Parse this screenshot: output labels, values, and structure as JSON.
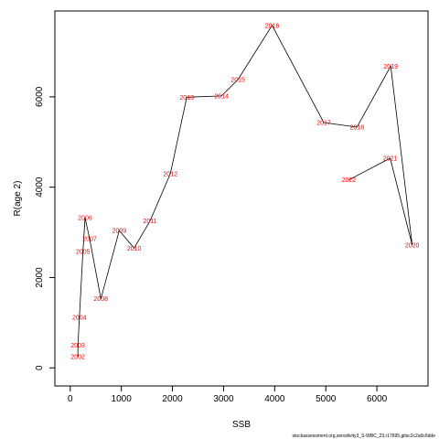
{
  "chart_data": {
    "type": "line",
    "title": "",
    "xlabel": "SSB",
    "ylabel": "R(age 2)",
    "xlim": [
      -300,
      7000
    ],
    "ylim": [
      -400,
      7900
    ],
    "xticks": [
      0,
      1000,
      2000,
      3000,
      4000,
      5000,
      6000
    ],
    "yticks": [
      0,
      2000,
      4000,
      6000
    ],
    "grid": false,
    "series": [
      {
        "line_color": "#000000",
        "label_color": "#ff0000",
        "points": [
          {
            "year": "2002",
            "x": 150,
            "y": 250
          },
          {
            "year": "2003",
            "x": 150,
            "y": 500
          },
          {
            "year": "2004",
            "x": 180,
            "y": 1120
          },
          {
            "year": "2005",
            "x": 250,
            "y": 2580
          },
          {
            "year": "2006",
            "x": 290,
            "y": 3320
          },
          {
            "year": "2007",
            "x": 380,
            "y": 2860
          },
          {
            "year": "2008",
            "x": 600,
            "y": 1530
          },
          {
            "year": "2009",
            "x": 960,
            "y": 3040
          },
          {
            "year": "2010",
            "x": 1250,
            "y": 2650
          },
          {
            "year": "2011",
            "x": 1560,
            "y": 3250
          },
          {
            "year": "2012",
            "x": 1960,
            "y": 4300
          },
          {
            "year": "2013",
            "x": 2280,
            "y": 5990
          },
          {
            "year": "2014",
            "x": 2960,
            "y": 6020
          },
          {
            "year": "2015",
            "x": 3280,
            "y": 6380
          },
          {
            "year": "2016",
            "x": 3950,
            "y": 7580
          },
          {
            "year": "2017",
            "x": 4960,
            "y": 5430
          },
          {
            "year": "2018",
            "x": 5610,
            "y": 5330
          },
          {
            "year": "2019",
            "x": 6270,
            "y": 6680
          },
          {
            "year": "2020",
            "x": 6690,
            "y": 2720
          },
          {
            "year": "2021",
            "x": 6260,
            "y": 4640
          },
          {
            "year": "2022",
            "x": 5450,
            "y": 4160
          }
        ]
      }
    ]
  },
  "footer": {
    "source_note": "stockassessment.org,sensitivity3_S-WBC_23,r17695,gitsc2c2a0c6dde"
  }
}
